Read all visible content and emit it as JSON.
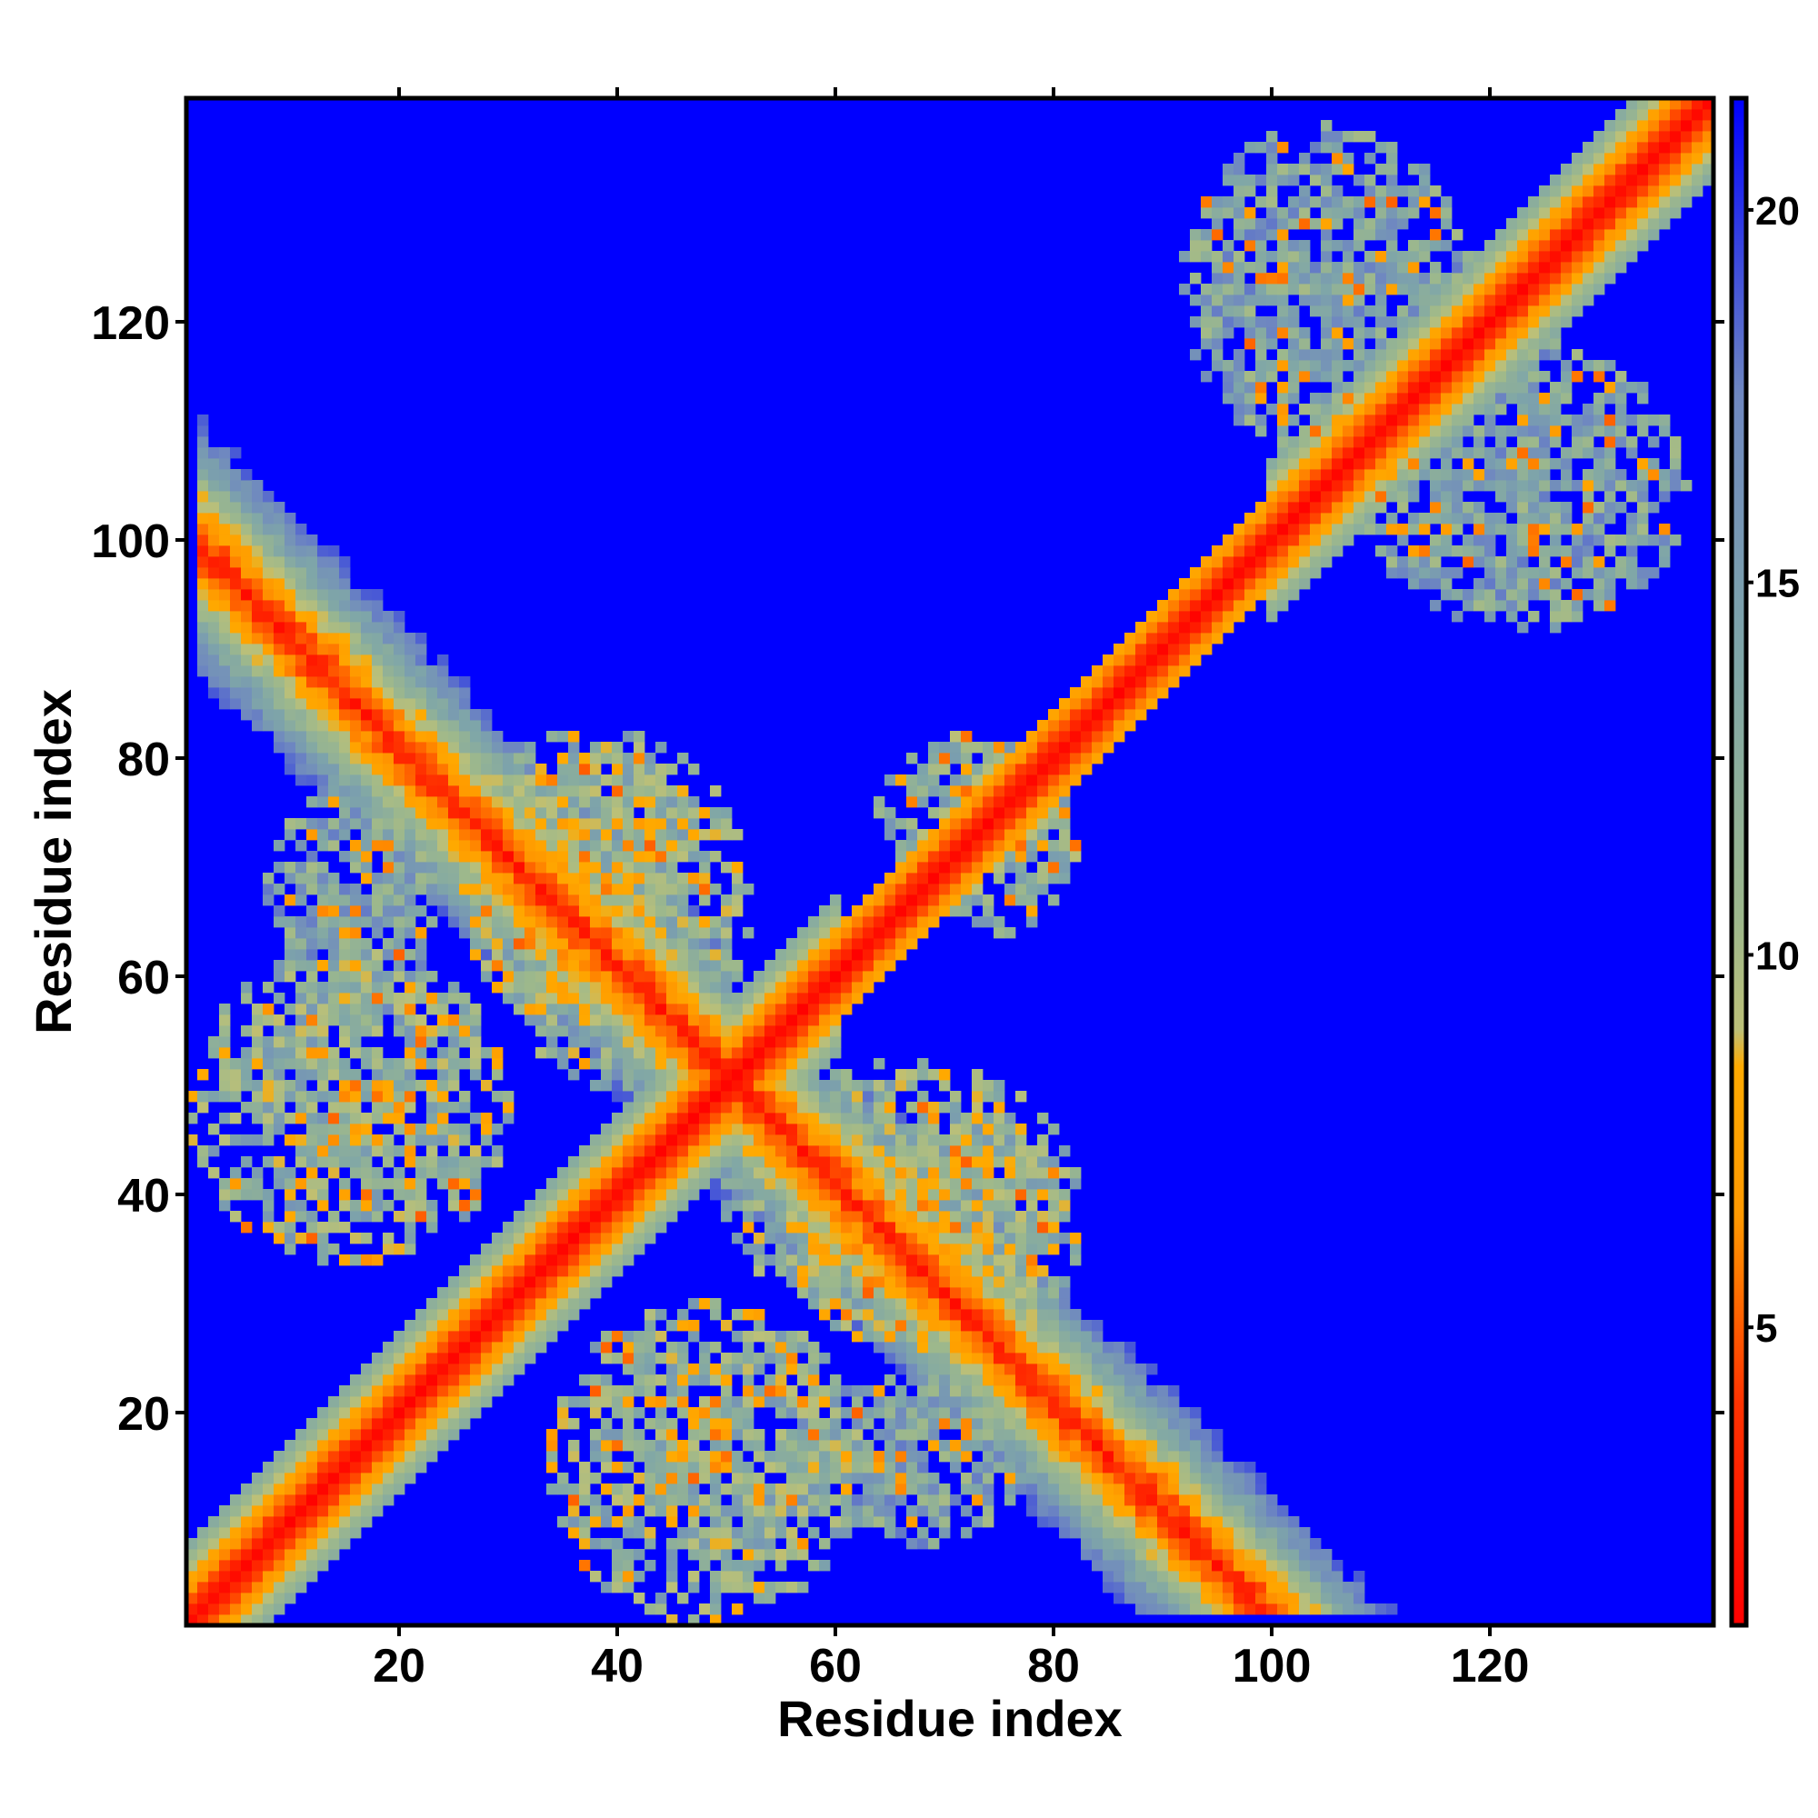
{
  "chart_data": {
    "type": "heatmap",
    "title": "",
    "xlabel": "Residue index",
    "ylabel": "Residue index",
    "n_residues": 140,
    "xlim": [
      1,
      140
    ],
    "ylim": [
      1,
      140
    ],
    "x_ticks": [
      20,
      40,
      60,
      80,
      100,
      120
    ],
    "y_ticks": [
      20,
      40,
      60,
      80,
      100,
      120
    ],
    "colorbar": {
      "range": [
        1,
        21.5
      ],
      "ticks": [
        5,
        10,
        15,
        20
      ],
      "stops": [
        {
          "value": 1,
          "color": "#ff0000"
        },
        {
          "value": 4,
          "color": "#ff3300"
        },
        {
          "value": 6.5,
          "color": "#ff9900"
        },
        {
          "value": 8.5,
          "color": "#ffaa00"
        },
        {
          "value": 9,
          "color": "#bcc078"
        },
        {
          "value": 10.5,
          "color": "#9db88c"
        },
        {
          "value": 14,
          "color": "#7fa6a8"
        },
        {
          "value": 17.5,
          "color": "#6f88c0"
        },
        {
          "value": 21.5,
          "color": "#0000ff"
        }
      ]
    },
    "background_value": 21.5,
    "features": [
      {
        "kind": "diagonal_band",
        "from": 1,
        "to": 140,
        "description": "near-diagonal contacts"
      },
      {
        "kind": "antiparallel_band",
        "center_sum": 101,
        "i_range": [
          2,
          50
        ],
        "width": 12
      },
      {
        "kind": "contact_patch",
        "x_range": [
          1,
          30
        ],
        "y_range": [
          34,
          62
        ],
        "mean_value": 12
      },
      {
        "kind": "contact_patch",
        "x_range": [
          26,
          46
        ],
        "y_range": [
          55,
          82
        ],
        "mean_value": 12
      },
      {
        "kind": "contact_patch",
        "x_range": [
          50,
          82
        ],
        "y_range": [
          28,
          52
        ],
        "mean_value": 12
      },
      {
        "kind": "contact_patch",
        "x_range": [
          55,
          78
        ],
        "y_range": [
          8,
          23
        ],
        "mean_value": 14
      },
      {
        "kind": "contact_patch",
        "x_range": [
          64,
          80
        ],
        "y_range": [
          68,
          82
        ],
        "mean_value": 12
      },
      {
        "kind": "contact_patch",
        "x_range": [
          92,
          118
        ],
        "y_range": [
          108,
          138
        ],
        "mean_value": 14
      }
    ]
  }
}
